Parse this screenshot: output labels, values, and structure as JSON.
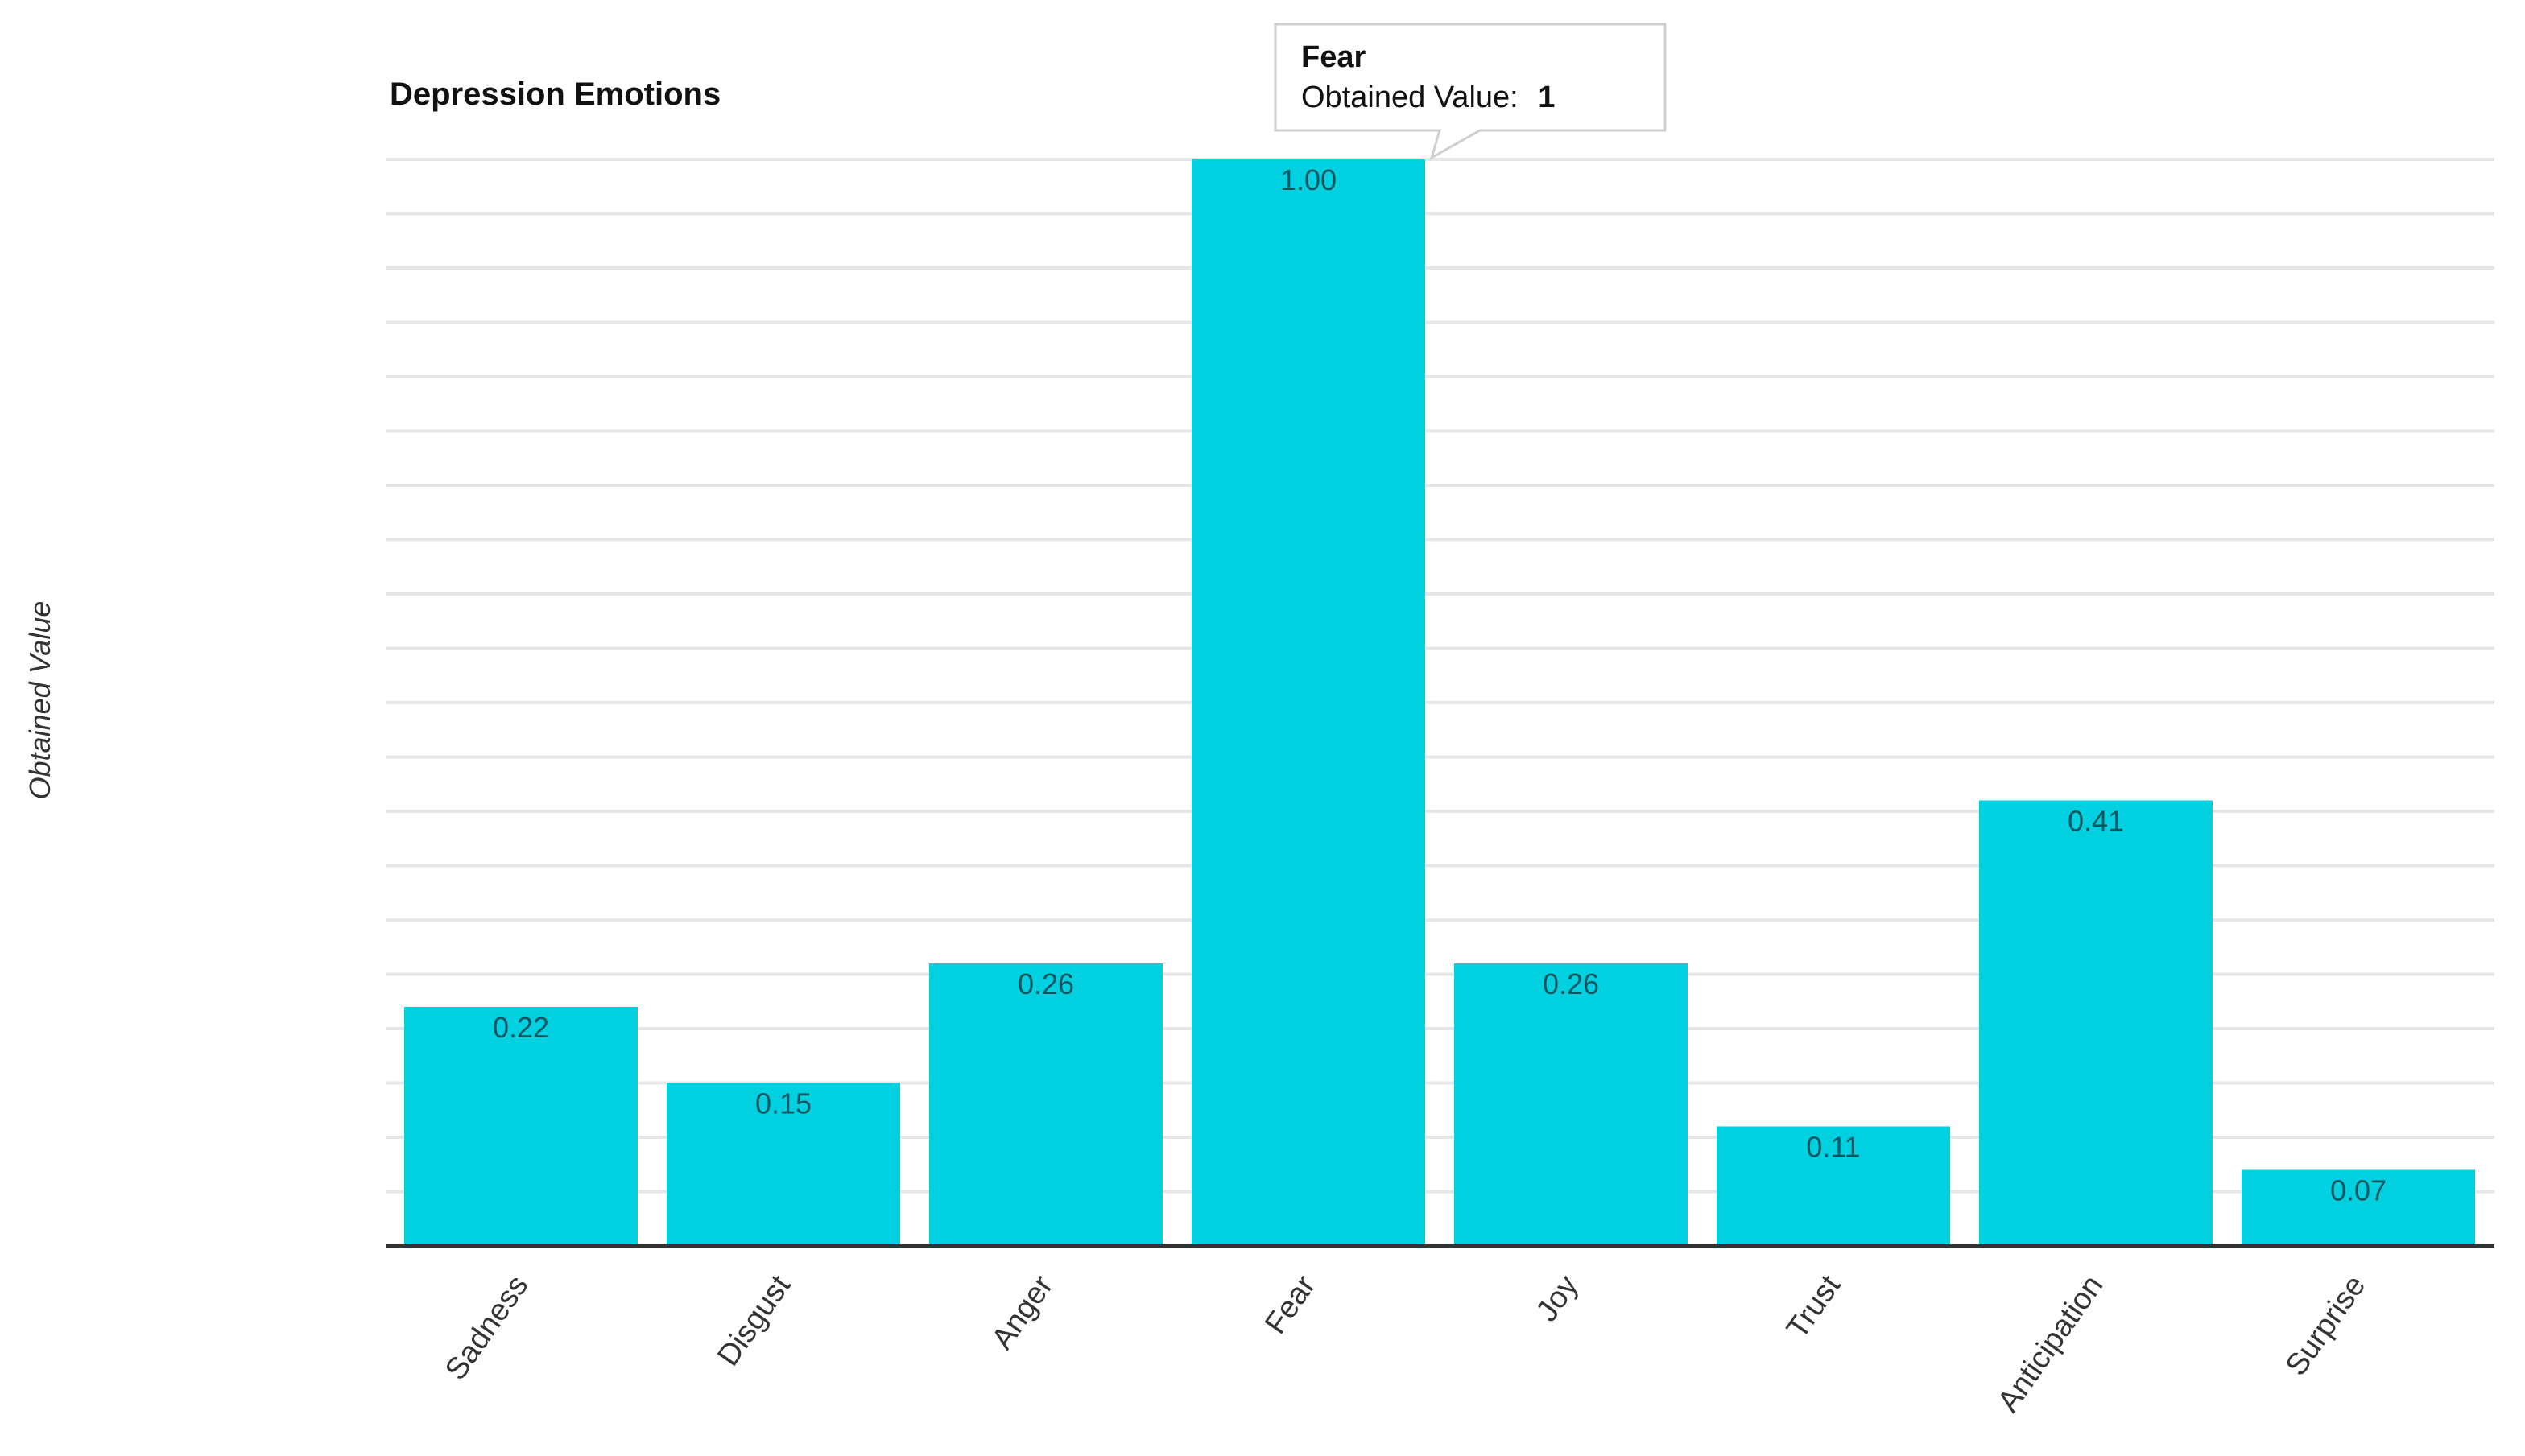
{
  "chart_data": {
    "type": "bar",
    "title": "Depression Emotions",
    "ylabel": "Obtained Value",
    "xlabel": "",
    "ylim": [
      0,
      1
    ],
    "categories": [
      "Sadness",
      "Disgust",
      "Anger",
      "Fear",
      "Joy",
      "Trust",
      "Anticipation",
      "Surprise"
    ],
    "values": [
      0.22,
      0.15,
      0.26,
      1.0,
      0.26,
      0.11,
      0.41,
      0.07
    ],
    "data_labels": [
      "0.22",
      "0.15",
      "0.26",
      "1.00",
      "0.26",
      "0.11",
      "0.41",
      "0.07"
    ],
    "bar_color": "#00d0e0",
    "grid": true,
    "tooltip": {
      "category_index": 3,
      "title": "Fear",
      "label": "Obtained Value:",
      "value": "1"
    }
  }
}
